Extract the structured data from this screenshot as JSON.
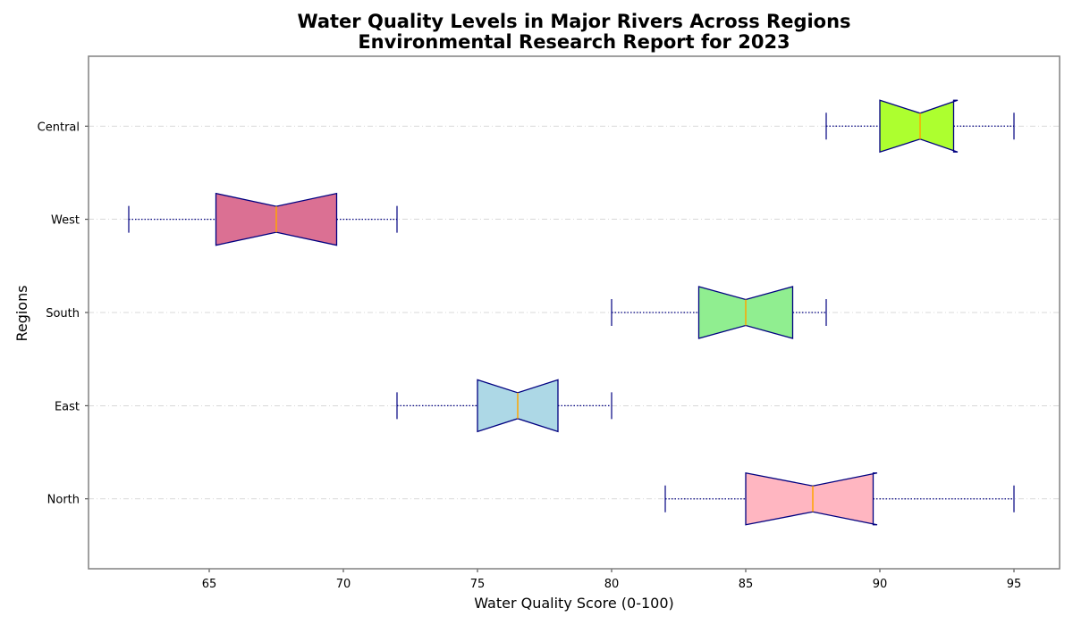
{
  "chart_data": {
    "type": "box",
    "orientation": "horizontal",
    "notched": true,
    "title": "Water Quality Levels in Major Rivers Across Regions",
    "subtitle": "Environmental Research Report for 2023",
    "xlabel": "Water Quality Score (0-100)",
    "ylabel": "Regions",
    "xlim": [
      60.5,
      96.7
    ],
    "x_ticks": [
      65,
      70,
      75,
      80,
      85,
      90,
      95
    ],
    "grid": "horizontal dashed",
    "categories": [
      "North",
      "East",
      "South",
      "West",
      "Central"
    ],
    "boxes": [
      {
        "name": "North",
        "whisker_low": 82,
        "q1": 85.0,
        "median": 87.5,
        "q3": 89.75,
        "whisker_high": 95,
        "notch_low": 85.0,
        "notch_high": 89.9,
        "color": "#ffb6c1"
      },
      {
        "name": "East",
        "whisker_low": 72,
        "q1": 75.0,
        "median": 76.5,
        "q3": 78.0,
        "whisker_high": 80,
        "notch_low": 75.0,
        "notch_high": 78.0,
        "color": "#add8e6"
      },
      {
        "name": "South",
        "whisker_low": 80,
        "q1": 83.25,
        "median": 85.0,
        "q3": 86.75,
        "whisker_high": 88,
        "notch_low": 83.25,
        "notch_high": 86.75,
        "color": "#90ee90"
      },
      {
        "name": "West",
        "whisker_low": 62,
        "q1": 65.25,
        "median": 67.5,
        "q3": 69.75,
        "whisker_high": 72,
        "notch_low": 65.25,
        "notch_high": 69.75,
        "color": "#db7093"
      },
      {
        "name": "Central",
        "whisker_low": 88,
        "q1": 90.0,
        "median": 91.5,
        "q3": 92.75,
        "whisker_high": 95,
        "notch_low": 90.0,
        "notch_high": 92.9,
        "color": "#adff2f"
      }
    ],
    "line_color": "#000080",
    "median_color": "#ffa500"
  }
}
